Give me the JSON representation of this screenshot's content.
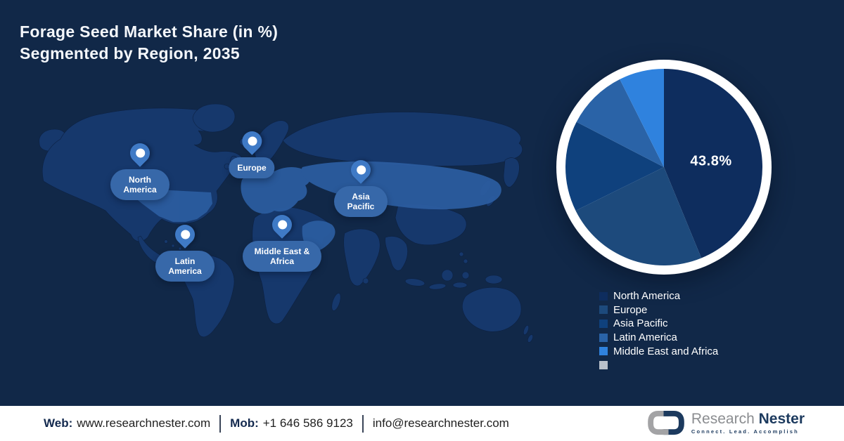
{
  "title": {
    "line1": "Forage Seed Market  Share (in %)",
    "line2": "Segmented by Region, 2035"
  },
  "map": {
    "pins": [
      {
        "id": "north-america",
        "label": "North America"
      },
      {
        "id": "europe",
        "label": "Europe"
      },
      {
        "id": "asia-pacific",
        "label": "Asia Pacific"
      },
      {
        "id": "middle-east-africa",
        "label": "Middle East & Africa"
      },
      {
        "id": "latin-america",
        "label": "Latin America"
      }
    ]
  },
  "chart_data": {
    "type": "pie",
    "labels": [
      "North America",
      "Europe",
      "Asia Pacific",
      "Latin America",
      "Middle East and Africa"
    ],
    "values": [
      43.8,
      23.9,
      14.9,
      10.0,
      7.4
    ],
    "colors": [
      "#0e2d5e",
      "#1d4a7c",
      "#0f417d",
      "#2a63a7",
      "#2f82de"
    ],
    "value_label_shown": "43.8%",
    "start_angle_deg": 0,
    "direction": "clockwise",
    "ring_color": "#ffffff",
    "legend_position": "bottom-right"
  },
  "legend": {
    "items": [
      {
        "label": "North America",
        "color": "#0e2d5e"
      },
      {
        "label": "Europe",
        "color": "#1d4a7c"
      },
      {
        "label": "Asia Pacific",
        "color": "#0f417d"
      },
      {
        "label": "Latin America",
        "color": "#2a63a7"
      },
      {
        "label": "Middle East and Africa",
        "color": "#2f82de"
      },
      {
        "label": "",
        "color": "#b9c1cb"
      }
    ]
  },
  "footer": {
    "web_label": "Web:",
    "web_value": "www.researchnester.com",
    "mob_label": "Mob:",
    "mob_value": "+1 646 586 9123",
    "email": "info@researchnester.com"
  },
  "logo": {
    "name_part1": "Research",
    "name_part2": "Nester",
    "tagline": "Connect. Lead. Accomplish"
  },
  "colors": {
    "background": "#112848",
    "map_land": "#16386c",
    "map_highlight": "#2b5c9f",
    "pin": "#3f7ac6",
    "label_pill": "#3768a9",
    "footer_bg": "#ffffff",
    "footer_label": "#13294e",
    "footer_text": "#1f1f1f",
    "title_text": "#f4f7fb",
    "logo_gray": "#8b8d90",
    "logo_navy": "#1c3a5e"
  }
}
